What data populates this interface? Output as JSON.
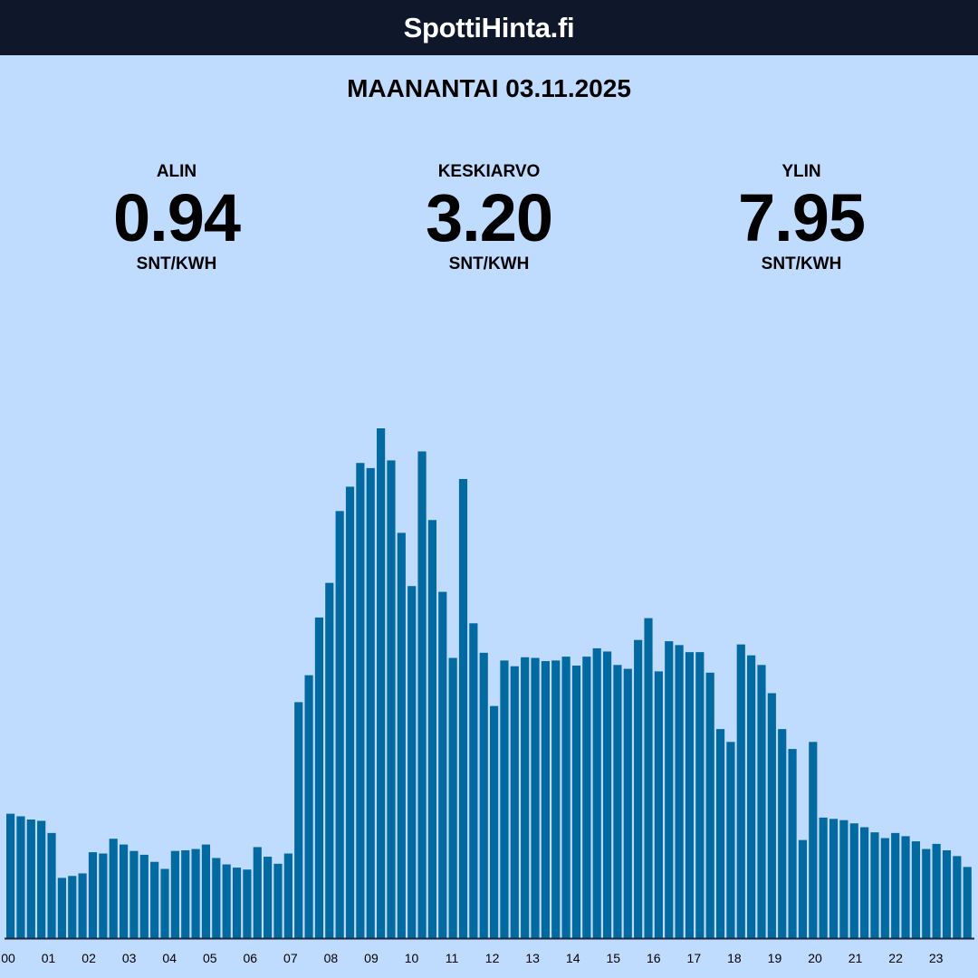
{
  "header": {
    "title": "SpottiHinta.fi"
  },
  "date_title": "MAANANTAI 03.11.2025",
  "stats": {
    "min": {
      "label": "ALIN",
      "value": "0.94",
      "unit": "SNT/KWH"
    },
    "avg": {
      "label": "KESKIARVO",
      "value": "3.20",
      "unit": "SNT/KWH"
    },
    "max": {
      "label": "YLIN",
      "value": "7.95",
      "unit": "SNT/KWH"
    }
  },
  "colors": {
    "header_bg": "#0f172a",
    "background": "#bfdbfe",
    "bar": "#0369a1",
    "axis": "#1e293b"
  },
  "chart_data": {
    "type": "bar",
    "title": "",
    "xlabel": "",
    "ylabel": "",
    "unit": "snt/kWh",
    "interval_minutes": 15,
    "grid": false,
    "legend": "none",
    "ylim": [
      0,
      7.95
    ],
    "tick_labels": [
      "00",
      "01",
      "02",
      "03",
      "04",
      "05",
      "06",
      "07",
      "08",
      "09",
      "10",
      "11",
      "12",
      "13",
      "14",
      "15",
      "16",
      "17",
      "18",
      "19",
      "20",
      "21",
      "22",
      "23"
    ],
    "values": [
      1.94,
      1.9,
      1.85,
      1.83,
      1.64,
      0.94,
      0.97,
      1.01,
      1.34,
      1.32,
      1.55,
      1.46,
      1.36,
      1.3,
      1.19,
      1.08,
      1.36,
      1.37,
      1.39,
      1.46,
      1.25,
      1.15,
      1.1,
      1.07,
      1.42,
      1.27,
      1.16,
      1.32,
      3.68,
      4.1,
      5.0,
      5.54,
      6.66,
      7.04,
      7.41,
      7.33,
      7.95,
      7.45,
      6.32,
      5.49,
      7.59,
      6.52,
      5.4,
      4.37,
      7.16,
      4.91,
      4.45,
      3.62,
      4.33,
      4.24,
      4.38,
      4.37,
      4.32,
      4.33,
      4.39,
      4.25,
      4.39,
      4.52,
      4.47,
      4.26,
      4.2,
      4.65,
      4.99,
      4.16,
      4.63,
      4.57,
      4.46,
      4.46,
      4.14,
      3.26,
      3.06,
      4.58,
      4.41,
      4.26,
      3.82,
      3.26,
      2.95,
      1.53,
      3.06,
      1.88,
      1.86,
      1.84,
      1.79,
      1.73,
      1.65,
      1.56,
      1.64,
      1.59,
      1.51,
      1.39,
      1.47,
      1.37,
      1.28,
      1.11
    ]
  }
}
